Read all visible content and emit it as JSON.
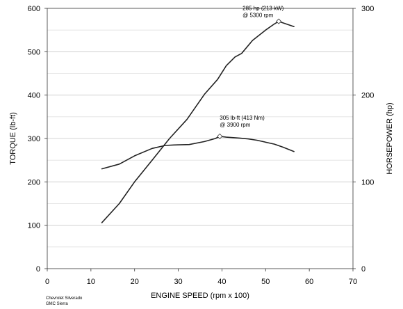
{
  "chart_data": {
    "type": "line",
    "title": "",
    "xlabel": "ENGINE SPEED (rpm x 100)",
    "ylabel": "TORQUE (lb-ft)",
    "y2label": "HORSEPOWER (hp)",
    "xlim": [
      0,
      70
    ],
    "ylim": [
      0,
      600
    ],
    "y2lim": [
      0,
      300
    ],
    "x_ticks": [
      "0",
      "10",
      "20",
      "30",
      "40",
      "50",
      "60",
      "70"
    ],
    "y_ticks": [
      "0",
      "100",
      "200",
      "300",
      "400",
      "500",
      "600"
    ],
    "y2_ticks": [
      "0",
      "100",
      "200",
      "300"
    ],
    "grid": "horizontal",
    "series": [
      {
        "axis": "left",
        "color": "#222222",
        "x": [
          12.5,
          16.5,
          20,
          24,
          27,
          29,
          32.5,
          36,
          38.5,
          39.5,
          41,
          44,
          46,
          48,
          52,
          54,
          56.5
        ],
        "y": [
          230,
          241,
          260,
          277,
          284,
          285,
          286,
          293,
          300,
          305,
          303,
          301,
          299,
          296,
          287,
          280,
          270
        ]
      },
      {
        "axis": "right",
        "color": "#222222",
        "x": [
          12.5,
          16.5,
          20,
          24,
          28,
          32,
          36,
          39,
          41,
          43,
          44.5,
          47,
          50,
          52,
          53,
          56.5
        ],
        "y": [
          53,
          75,
          100,
          125,
          150,
          172,
          201,
          218,
          234,
          244,
          248,
          263,
          275,
          282,
          285,
          279
        ]
      }
    ],
    "annotations": [
      {
        "lines": [
          "285 hp (213 kW)",
          "@ 5300 rpm"
        ],
        "x": 53,
        "y": 285,
        "axis": "right"
      },
      {
        "lines": [
          "305 lb-ft (413 Nm)",
          "@ 3900 rpm"
        ],
        "x": 39.5,
        "y": 305,
        "axis": "left"
      }
    ],
    "footnote": [
      "Chevrolet Silverado",
      "GMC Sierra"
    ]
  }
}
